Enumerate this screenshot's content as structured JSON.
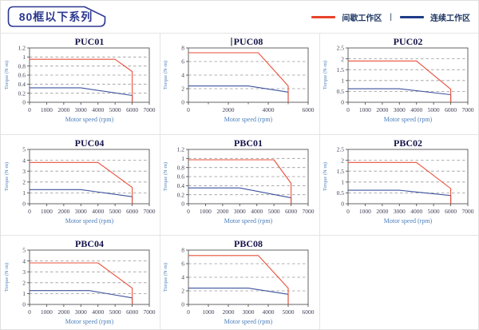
{
  "page": {
    "title": "80框以下系列"
  },
  "legend": {
    "separator": "|",
    "items": [
      {
        "name": "intermittent-zone",
        "label": "间歇工作区",
        "color": "#e8432c"
      },
      {
        "name": "continuous-zone",
        "label": "连续工作区",
        "color": "#1f3c88"
      }
    ]
  },
  "colors": {
    "badge": "#2b3890",
    "series_red": "#e8503a",
    "series_blue": "#3d539e",
    "grid": "#999999",
    "axis": "#555555",
    "tick_text": "#3f3f55",
    "axis_label": "#4a7ebb",
    "chart_title": "#15154a"
  },
  "chart_data": [
    {
      "type": "line",
      "title": "PUC01",
      "title_cursor": false,
      "xlabel": "Motor speed (rpm)",
      "ylabel": "Torque (N·m)",
      "xlim": [
        0,
        7000
      ],
      "ylim": [
        0,
        1.2
      ],
      "xticks": [
        0,
        1000,
        2000,
        3000,
        4000,
        5000,
        6000,
        7000
      ],
      "xticks_minor": [],
      "yticks": [
        0,
        0.2,
        0.4,
        0.6,
        0.8,
        1,
        1.2
      ],
      "grid": "dashed-horizontal",
      "legend_position": "none",
      "series": [
        {
          "name": "间歇工作区",
          "color_key": "series_red",
          "points": [
            [
              0,
              0.95
            ],
            [
              5000,
              0.95
            ],
            [
              6000,
              0.68
            ],
            [
              6000,
              0
            ]
          ]
        },
        {
          "name": "连续工作区",
          "color_key": "series_blue",
          "points": [
            [
              0,
              0.32
            ],
            [
              3000,
              0.32
            ],
            [
              6000,
              0.15
            ],
            [
              6000,
              0
            ]
          ]
        }
      ]
    },
    {
      "type": "line",
      "title": "PUC08",
      "title_cursor": true,
      "xlabel": "Motor speed (rpm)",
      "ylabel": "Torque (N·m)",
      "xlim": [
        0,
        6000
      ],
      "ylim": [
        0,
        8
      ],
      "xticks": [
        0,
        2000,
        4000,
        6000
      ],
      "xticks_minor": [
        1000,
        3000,
        5000
      ],
      "yticks": [
        0,
        2,
        4,
        6,
        8
      ],
      "grid": "dashed-horizontal",
      "legend_position": "none",
      "series": [
        {
          "name": "间歇工作区",
          "color_key": "series_red",
          "points": [
            [
              0,
              7.3
            ],
            [
              3500,
              7.3
            ],
            [
              5000,
              2.4
            ],
            [
              5000,
              0
            ]
          ]
        },
        {
          "name": "连续工作区",
          "color_key": "series_blue",
          "points": [
            [
              0,
              2.4
            ],
            [
              3000,
              2.4
            ],
            [
              5000,
              1.5
            ],
            [
              5000,
              0
            ]
          ]
        }
      ]
    },
    {
      "type": "line",
      "title": "PUC02",
      "title_cursor": false,
      "xlabel": "Motor speed (rpm)",
      "ylabel": "Torque (N·m)",
      "xlim": [
        0,
        7000
      ],
      "ylim": [
        0,
        2.5
      ],
      "xticks": [
        0,
        1000,
        2000,
        3000,
        4000,
        5000,
        6000,
        7000
      ],
      "xticks_minor": [],
      "yticks": [
        0,
        0.5,
        1,
        1.5,
        2,
        2.5
      ],
      "grid": "dashed-horizontal",
      "legend_position": "none",
      "series": [
        {
          "name": "间歇工作区",
          "color_key": "series_red",
          "points": [
            [
              0,
              1.9
            ],
            [
              4000,
              1.9
            ],
            [
              6000,
              0.6
            ],
            [
              6000,
              0
            ]
          ]
        },
        {
          "name": "连续工作区",
          "color_key": "series_blue",
          "points": [
            [
              0,
              0.62
            ],
            [
              3000,
              0.62
            ],
            [
              6000,
              0.35
            ],
            [
              6000,
              0
            ]
          ]
        }
      ]
    },
    {
      "type": "line",
      "title": "PUC04",
      "title_cursor": false,
      "xlabel": "Motor speed (rpm)",
      "ylabel": "Torque (N·m)",
      "xlim": [
        0,
        7000
      ],
      "ylim": [
        0,
        5
      ],
      "xticks": [
        0,
        1000,
        2000,
        3000,
        4000,
        5000,
        6000,
        7000
      ],
      "xticks_minor": [],
      "yticks": [
        0,
        1,
        2,
        3,
        4,
        5
      ],
      "grid": "dashed-horizontal",
      "legend_position": "none",
      "series": [
        {
          "name": "间歇工作区",
          "color_key": "series_red",
          "points": [
            [
              0,
              3.8
            ],
            [
              4000,
              3.8
            ],
            [
              6000,
              1.5
            ],
            [
              6000,
              0
            ]
          ]
        },
        {
          "name": "连续工作区",
          "color_key": "series_blue",
          "points": [
            [
              0,
              1.3
            ],
            [
              3000,
              1.3
            ],
            [
              6000,
              0.65
            ],
            [
              6000,
              0
            ]
          ]
        }
      ]
    },
    {
      "type": "line",
      "title": "PBC01",
      "title_cursor": false,
      "xlabel": "Motor speed (rpm)",
      "ylabel": "Torque (N·m)",
      "xlim": [
        0,
        7000
      ],
      "ylim": [
        0,
        1.2
      ],
      "xticks": [
        0,
        1000,
        2000,
        3000,
        4000,
        5000,
        6000,
        7000
      ],
      "xticks_minor": [],
      "yticks": [
        0,
        0.2,
        0.4,
        0.6,
        0.8,
        1,
        1.2
      ],
      "grid": "dashed-horizontal",
      "legend_position": "none",
      "series": [
        {
          "name": "间歇工作区",
          "color_key": "series_red",
          "points": [
            [
              0,
              0.97
            ],
            [
              5000,
              0.97
            ],
            [
              6000,
              0.45
            ],
            [
              6000,
              0
            ]
          ]
        },
        {
          "name": "连续工作区",
          "color_key": "series_blue",
          "points": [
            [
              0,
              0.35
            ],
            [
              3000,
              0.35
            ],
            [
              6000,
              0.13
            ],
            [
              6000,
              0
            ]
          ]
        }
      ]
    },
    {
      "type": "line",
      "title": "PBC02",
      "title_cursor": false,
      "xlabel": "Motor speed (rpm)",
      "ylabel": "Torque (N·m)",
      "xlim": [
        0,
        7000
      ],
      "ylim": [
        0,
        2.5
      ],
      "xticks": [
        0,
        1000,
        2000,
        3000,
        4000,
        5000,
        6000,
        7000
      ],
      "xticks_minor": [],
      "yticks": [
        0,
        0.5,
        1,
        1.5,
        2,
        2.5
      ],
      "grid": "dashed-horizontal",
      "legend_position": "none",
      "series": [
        {
          "name": "间歇工作区",
          "color_key": "series_red",
          "points": [
            [
              0,
              1.9
            ],
            [
              4000,
              1.9
            ],
            [
              6000,
              0.7
            ],
            [
              6000,
              0
            ]
          ]
        },
        {
          "name": "连续工作区",
          "color_key": "series_blue",
          "points": [
            [
              0,
              0.62
            ],
            [
              3000,
              0.62
            ],
            [
              6000,
              0.38
            ],
            [
              6000,
              0
            ]
          ]
        }
      ]
    },
    {
      "type": "line",
      "title": "PBC04",
      "title_cursor": false,
      "xlabel": "Motor speed (rpm)",
      "ylabel": "Torque (N·m)",
      "xlim": [
        0,
        7000
      ],
      "ylim": [
        0,
        5
      ],
      "xticks": [
        0,
        1000,
        2000,
        3000,
        4000,
        5000,
        6000,
        7000
      ],
      "xticks_minor": [],
      "yticks": [
        0,
        1,
        2,
        3,
        4,
        5
      ],
      "grid": "dashed-horizontal",
      "legend_position": "none",
      "series": [
        {
          "name": "间歇工作区",
          "color_key": "series_red",
          "points": [
            [
              0,
              3.82
            ],
            [
              4000,
              3.82
            ],
            [
              6000,
              1.5
            ],
            [
              6000,
              0
            ]
          ]
        },
        {
          "name": "连续工作区",
          "color_key": "series_blue",
          "points": [
            [
              0,
              1.27
            ],
            [
              3500,
              1.27
            ],
            [
              6000,
              0.6
            ],
            [
              6000,
              0
            ]
          ]
        }
      ]
    },
    {
      "type": "line",
      "title": "PBC08",
      "title_cursor": false,
      "xlabel": "Motor speed (rpm)",
      "ylabel": "Torque (N·m)",
      "xlim": [
        0,
        6000
      ],
      "ylim": [
        0,
        8
      ],
      "xticks": [
        0,
        1000,
        2000,
        3000,
        4000,
        5000,
        6000
      ],
      "xticks_minor": [],
      "yticks": [
        0,
        2,
        4,
        6,
        8
      ],
      "grid": "dashed-horizontal",
      "legend_position": "none",
      "series": [
        {
          "name": "间歇工作区",
          "color_key": "series_red",
          "points": [
            [
              0,
              7.2
            ],
            [
              3500,
              7.2
            ],
            [
              5000,
              2.4
            ],
            [
              5000,
              0
            ]
          ]
        },
        {
          "name": "连续工作区",
          "color_key": "series_blue",
          "points": [
            [
              0,
              2.4
            ],
            [
              3000,
              2.4
            ],
            [
              5000,
              1.5
            ],
            [
              5000,
              0
            ]
          ]
        }
      ]
    }
  ]
}
